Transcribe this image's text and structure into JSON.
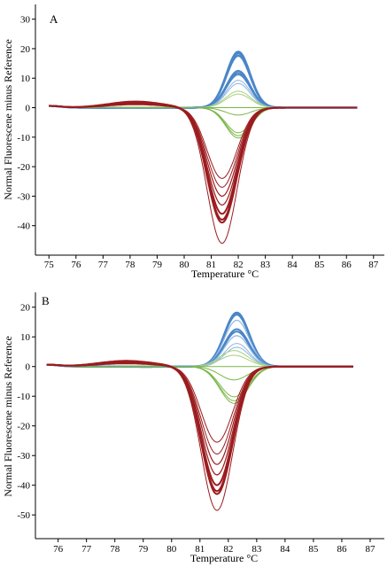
{
  "figure": {
    "panels": [
      {
        "id": "A",
        "label": "A"
      },
      {
        "id": "B",
        "label": "B"
      }
    ]
  },
  "chart_data": [
    {
      "type": "line",
      "panel_label": "A",
      "xlabel": "Temperature °C",
      "ylabel": "Normal Fluorescene minus Reference",
      "xlim": [
        74.5,
        87.4
      ],
      "ylim": [
        -50,
        35
      ],
      "xticks": [
        75,
        76,
        77,
        78,
        79,
        80,
        81,
        82,
        83,
        84,
        85,
        86,
        87
      ],
      "yticks": [
        30,
        20,
        10,
        0,
        -10,
        -20,
        -30,
        -40
      ],
      "grid": false,
      "legend": "none",
      "x_start": 75.0,
      "x_end": 86.4,
      "colors": {
        "blue": "#4a86c8",
        "green": "#7ab648",
        "red": "#9b1c1f",
        "light_blue": "#8fb8e0",
        "light_green": "#a8d080"
      },
      "groups": [
        {
          "color": "blue",
          "peak_x": 82.0,
          "peak_width": 0.62,
          "pre_shoulder": 0.6,
          "amplitudes": [
            19,
            18.4,
            17.6,
            12.5,
            11.8,
            11.2,
            9.3,
            8.2
          ],
          "strokes": [
            2.2,
            2.2,
            2.2,
            2.0,
            2.0,
            1.6,
            1.0,
            1.0
          ]
        },
        {
          "color": "green",
          "peak_x": 82.0,
          "peak_width": 0.65,
          "pre_shoulder": 0.4,
          "amplitudes": [
            5.6,
            4.6,
            0,
            -2.5,
            -8.5,
            -9.5,
            -10.3
          ],
          "strokes": [
            1.0,
            1.0,
            1.0,
            1.0,
            1.0,
            1.0,
            1.0
          ]
        },
        {
          "color": "red",
          "peak_x": 81.4,
          "peak_width": 0.78,
          "pre_shoulder": 2.4,
          "amplitudes": [
            -24,
            -27,
            -30,
            -33,
            -36,
            -38,
            -39,
            -46
          ],
          "strokes": [
            1.0,
            1.0,
            1.2,
            1.2,
            2.0,
            2.0,
            2.0,
            1.0
          ]
        }
      ]
    },
    {
      "type": "line",
      "panel_label": "B",
      "xlabel": "Temperature °C",
      "ylabel": "Normal Fluorescene minus Reference",
      "xlim": [
        75.2,
        87.5
      ],
      "ylim": [
        -58,
        25
      ],
      "xticks": [
        76,
        77,
        78,
        79,
        80,
        81,
        82,
        83,
        84,
        85,
        86,
        87
      ],
      "yticks": [
        20,
        10,
        0,
        -10,
        -20,
        -30,
        -40,
        -50
      ],
      "grid": false,
      "legend": "none",
      "x_start": 75.6,
      "x_end": 86.4,
      "colors": {
        "blue": "#4a86c8",
        "green": "#7ab648",
        "red": "#9b1c1f",
        "light_blue": "#8fb8e0",
        "light_green": "#a8d080"
      },
      "groups": [
        {
          "color": "blue",
          "peak_x": 82.3,
          "peak_width": 0.62,
          "pre_shoulder": 0.8,
          "amplitudes": [
            18.2,
            17.5,
            15.6,
            12.6,
            11.8,
            10.4,
            7.8,
            6.5
          ],
          "strokes": [
            2.2,
            2.2,
            1.2,
            2.0,
            2.0,
            1.2,
            1.0,
            1.0
          ]
        },
        {
          "color": "green",
          "peak_x": 82.2,
          "peak_width": 0.7,
          "pre_shoulder": 0.6,
          "amplitudes": [
            5.4,
            3.8,
            0,
            -4.5,
            -10.2,
            -11.5,
            -12.4
          ],
          "strokes": [
            1.0,
            1.0,
            1.0,
            1.0,
            1.0,
            1.0,
            1.0
          ]
        },
        {
          "color": "red",
          "peak_x": 81.6,
          "peak_width": 0.78,
          "pre_shoulder": 2.0,
          "amplitudes": [
            -25.5,
            -29.5,
            -33,
            -36.5,
            -40,
            -42,
            -43,
            -48.5
          ],
          "strokes": [
            1.0,
            1.0,
            1.2,
            1.2,
            2.0,
            2.0,
            2.0,
            1.0
          ]
        }
      ]
    }
  ]
}
